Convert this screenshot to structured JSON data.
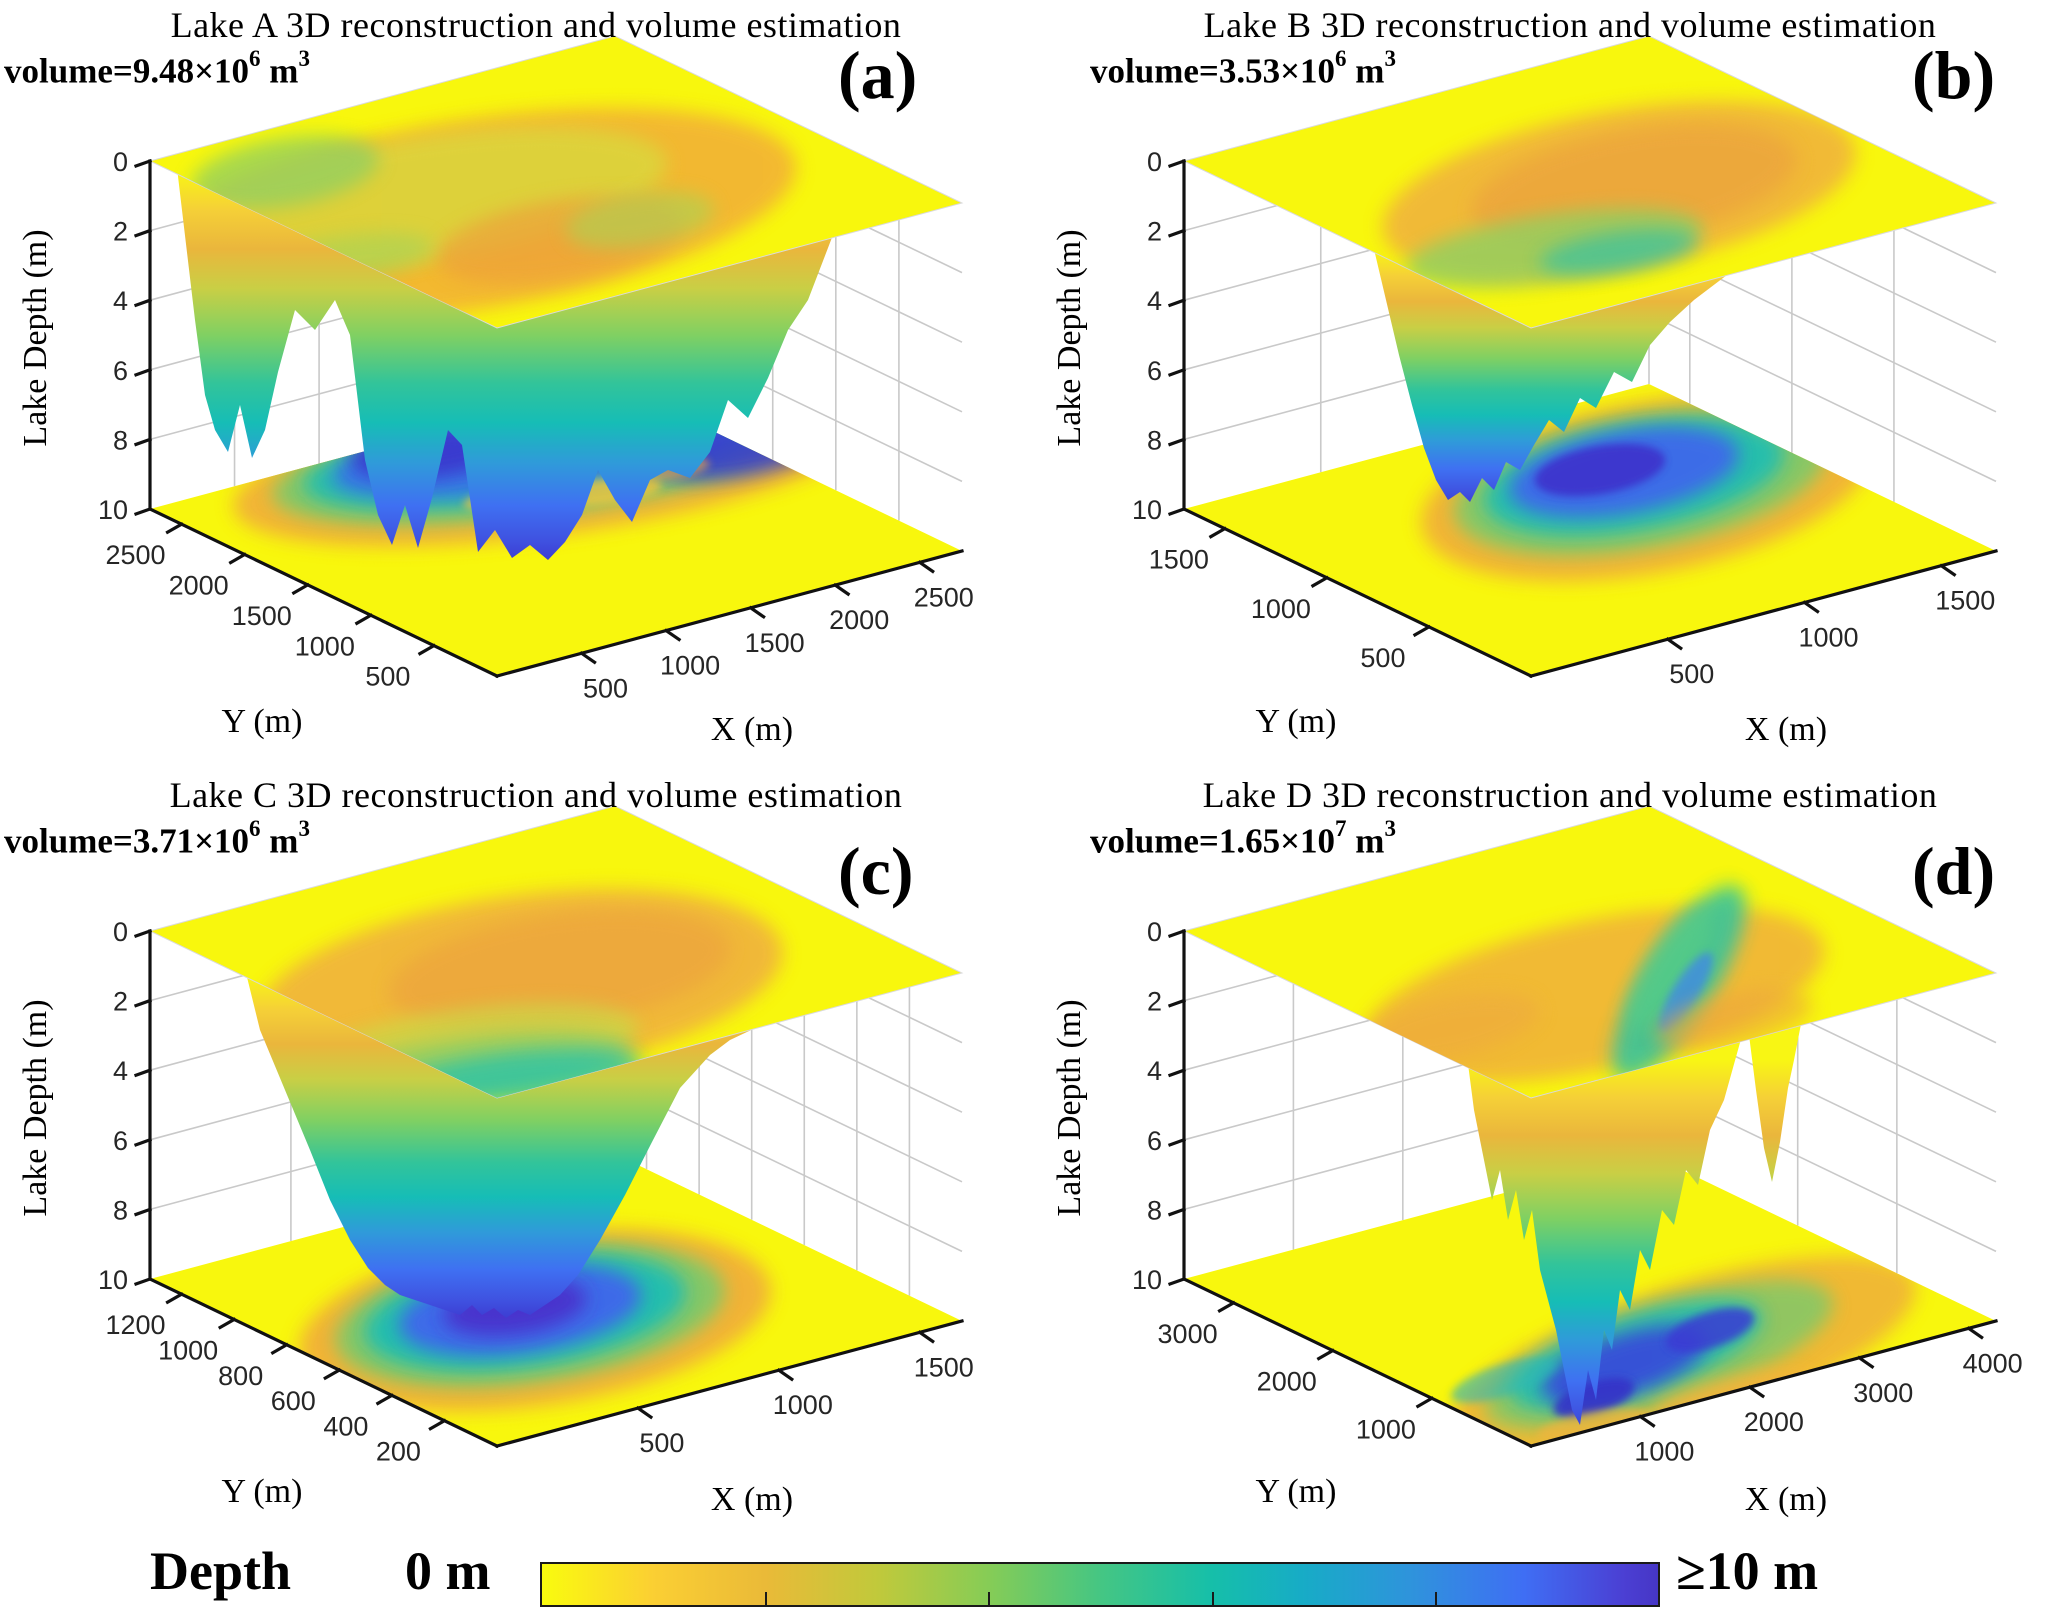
{
  "panels": [
    {
      "letter": "(a)",
      "title": "Lake A 3D reconstruction and volume estimation",
      "volume_base": "volume=9.48×10",
      "volume_exp": "6",
      "volume_unit": " m",
      "volume_unit_exp": "3",
      "xlabel": "X (m)",
      "ylabel": "Y (m)",
      "zlabel": "Lake Depth (m)",
      "x_ticks": [
        500,
        1000,
        1500,
        2000,
        2500
      ],
      "y_ticks": [
        2500,
        2000,
        1500,
        1000,
        500
      ],
      "z_ticks": [
        0,
        2,
        4,
        6,
        8,
        10
      ]
    },
    {
      "letter": "(b)",
      "title": "Lake B 3D reconstruction and volume estimation",
      "volume_base": "volume=3.53×10",
      "volume_exp": "6",
      "volume_unit": " m",
      "volume_unit_exp": "3",
      "xlabel": "X (m)",
      "ylabel": "Y (m)",
      "zlabel": "Lake Depth (m)",
      "x_ticks": [
        500,
        1000,
        1500
      ],
      "y_ticks": [
        1500,
        1000,
        500
      ],
      "z_ticks": [
        0,
        2,
        4,
        6,
        8,
        10
      ]
    },
    {
      "letter": "(c)",
      "title": "Lake C 3D reconstruction and volume estimation",
      "volume_base": "volume=3.71×10",
      "volume_exp": "6",
      "volume_unit": " m",
      "volume_unit_exp": "3",
      "xlabel": "X (m)",
      "ylabel": "Y (m)",
      "zlabel": "Lake Depth (m)",
      "x_ticks": [
        500,
        1000,
        1500
      ],
      "y_ticks": [
        1200,
        1000,
        800,
        600,
        400,
        200
      ],
      "z_ticks": [
        0,
        2,
        4,
        6,
        8,
        10
      ]
    },
    {
      "letter": "(d)",
      "title": "Lake D 3D reconstruction and volume estimation",
      "volume_base": "volume=1.65×10",
      "volume_exp": "7",
      "volume_unit": " m",
      "volume_unit_exp": "3",
      "xlabel": "X (m)",
      "ylabel": "Y (m)",
      "zlabel": "Lake Depth (m)",
      "x_ticks": [
        1000,
        2000,
        3000,
        4000
      ],
      "y_ticks": [
        3000,
        2000,
        1000
      ],
      "z_ticks": [
        0,
        2,
        4,
        6,
        8,
        10
      ]
    }
  ],
  "colorbar": {
    "title": "Depth",
    "min_label": "0 m",
    "max_label": "≥10 m",
    "colors": [
      "#f9fb0e",
      "#fbcf33",
      "#eaba38",
      "#c1c93b",
      "#86cc56",
      "#45c683",
      "#16bfa9",
      "#17acc6",
      "#2f93dc",
      "#3f6ef4",
      "#4b3fd3",
      "#4636c6"
    ],
    "positions": [
      0,
      10,
      20,
      30,
      40,
      50,
      60,
      68,
      78,
      88,
      97,
      100
    ]
  },
  "chart_data": {
    "type": "3d-surface",
    "layout": "2x2 grid of 3D lake bathymetry reconstructions with shared reversed-parula depth colormap",
    "subplots": [
      {
        "label": "(a)",
        "title": "Lake A 3D reconstruction and volume estimation",
        "volume_text": "volume=9.48×10^6 m^3",
        "volume_m3": 9480000,
        "xlabel": "X (m)",
        "ylabel": "Y (m)",
        "zlabel": "Lake Depth (m)",
        "x_ticks": [
          500,
          1000,
          1500,
          2000,
          2500
        ],
        "y_ticks": [
          500,
          1000,
          1500,
          2000,
          2500
        ],
        "z_ticks": [
          0,
          2,
          4,
          6,
          8,
          10
        ],
        "x_range": [
          0,
          2700
        ],
        "y_range": [
          0,
          2700
        ],
        "zlim": [
          0,
          10
        ],
        "z_axis_inverted": true,
        "max_depth_m": 10,
        "shape_note": "elongated lake, wide multi-lobed basin with two deep blue cores"
      },
      {
        "label": "(b)",
        "title": "Lake B 3D reconstruction and volume estimation",
        "volume_text": "volume=3.53×10^6 m^3",
        "volume_m3": 3530000,
        "xlabel": "X (m)",
        "ylabel": "Y (m)",
        "zlabel": "Lake Depth (m)",
        "x_ticks": [
          500,
          1000,
          1500
        ],
        "y_ticks": [
          500,
          1000,
          1500
        ],
        "z_ticks": [
          0,
          2,
          4,
          6,
          8,
          10
        ],
        "x_range": [
          0,
          1700
        ],
        "y_range": [
          0,
          1700
        ],
        "zlim": [
          0,
          10
        ],
        "z_axis_inverted": true,
        "max_depth_m": 8,
        "shape_note": "roundish central basin, funnel reaching ~8 m"
      },
      {
        "label": "(c)",
        "title": "Lake C 3D reconstruction and volume estimation",
        "volume_text": "volume=3.71×10^6 m^3",
        "volume_m3": 3710000,
        "xlabel": "X (m)",
        "ylabel": "Y (m)",
        "zlabel": "Lake Depth (m)",
        "x_ticks": [
          500,
          1000,
          1500
        ],
        "y_ticks": [
          200,
          400,
          600,
          800,
          1000,
          1200
        ],
        "z_ticks": [
          0,
          2,
          4,
          6,
          8,
          10
        ],
        "x_range": [
          0,
          1600
        ],
        "y_range": [
          0,
          1300
        ],
        "zlim": [
          0,
          10
        ],
        "z_axis_inverted": true,
        "max_depth_m": 10,
        "shape_note": "single smooth goblet-shaped basin, deep violet-blue core"
      },
      {
        "label": "(d)",
        "title": "Lake D 3D reconstruction and volume estimation",
        "volume_text": "volume=1.65×10^7 m^3",
        "volume_m3": 16500000,
        "xlabel": "X (m)",
        "ylabel": "Y (m)",
        "zlabel": "Lake Depth (m)",
        "x_ticks": [
          1000,
          2000,
          3000,
          4000
        ],
        "y_ticks": [
          1000,
          2000,
          3000
        ],
        "z_ticks": [
          0,
          2,
          4,
          6,
          8,
          10
        ],
        "x_range": [
          0,
          4200
        ],
        "y_range": [
          0,
          3500
        ],
        "zlim": [
          0,
          10
        ],
        "z_axis_inverted": true,
        "max_depth_m": 10,
        "shape_note": "narrow deep gorge plunging to bottom plane, diagonal blue streak in depth map"
      }
    ],
    "colorbar": {
      "label_left": "Depth",
      "min": "0 m",
      "max": "≥10 m",
      "orientation": "horizontal",
      "colormap": "reversed parula: yellow (shallow 0 m) → orange → green → teal → blue → violet (≥10 m)"
    }
  }
}
